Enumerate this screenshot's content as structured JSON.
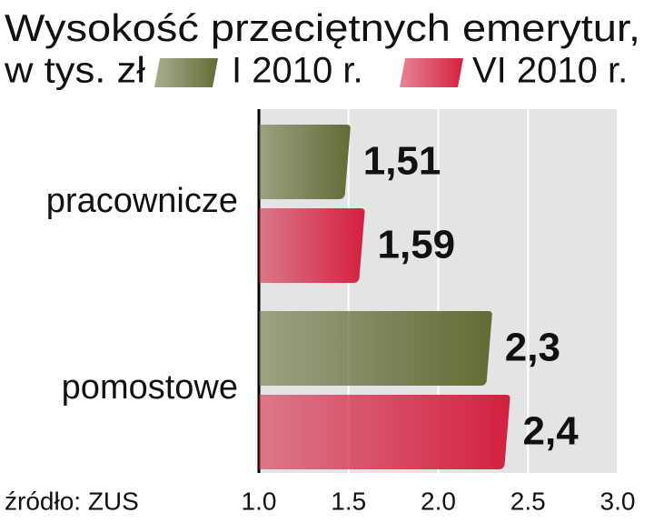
{
  "chart_data": {
    "type": "bar",
    "orientation": "horizontal",
    "title": "Wysokość przeciętnych emerytur,",
    "subtitle": "w tys. zł",
    "categories": [
      "pracownicze",
      "pomostowe"
    ],
    "series": [
      {
        "name": "I 2010 r.",
        "color": "#636b35",
        "values": [
          1.51,
          2.3
        ],
        "value_labels": [
          "1,51",
          "2,3"
        ]
      },
      {
        "name": "VI 2010 r.",
        "color": "#d4203f",
        "values": [
          1.59,
          2.4
        ],
        "value_labels": [
          "1,59",
          "2,4"
        ]
      }
    ],
    "xlim": [
      1,
      3
    ],
    "xticks": [
      {
        "value": 1,
        "label": "1.0"
      },
      {
        "value": 1.5,
        "label": "1.5"
      },
      {
        "value": 2,
        "label": "2.0"
      },
      {
        "value": 2.5,
        "label": "2.5"
      },
      {
        "value": 3,
        "label": "3.0"
      }
    ],
    "grid": true,
    "source": "źródło: ZUS"
  }
}
